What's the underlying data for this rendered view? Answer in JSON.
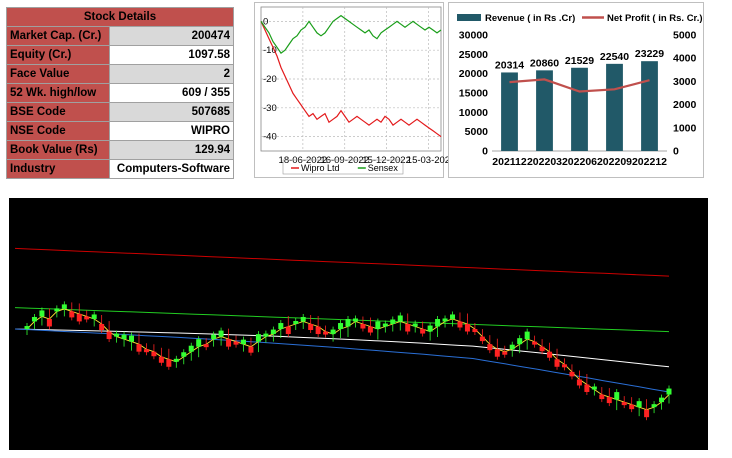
{
  "stock_details": {
    "title": "Stock Details",
    "rows": [
      {
        "label": "Market Cap. (Cr.)",
        "value": "200474"
      },
      {
        "label": "Equity (Cr.)",
        "value": "1097.58"
      },
      {
        "label": "Face Value",
        "value": "2"
      },
      {
        "label": "52 Wk. high/low",
        "value": "609 / 355"
      },
      {
        "label": "BSE Code",
        "value": "507685"
      },
      {
        "label": "NSE Code",
        "value": "WIPRO"
      },
      {
        "label": "Book Value (Rs)",
        "value": "129.94"
      },
      {
        "label": "Industry",
        "value": "Computers-Software"
      }
    ]
  },
  "chart_data": [
    {
      "type": "line",
      "title": "",
      "xlabel": "",
      "ylabel": "",
      "x_ticks": [
        "18-06-2022",
        "16-09-2022",
        "15-12-2022",
        "15-03-202"
      ],
      "ylim": [
        -45,
        5
      ],
      "y_ticks": [
        0,
        -10,
        -20,
        -30,
        -40
      ],
      "grid": true,
      "legend_position": "bottom",
      "series": [
        {
          "name": "Wipro Ltd",
          "color": "#e31a1c",
          "values": [
            0,
            -3,
            -6,
            -9,
            -12,
            -16,
            -19,
            -22,
            -25,
            -27,
            -29,
            -31,
            -33,
            -32,
            -34,
            -33,
            -32,
            -35,
            -34,
            -33,
            -31,
            -33,
            -35,
            -34,
            -33,
            -34,
            -35,
            -36,
            -35,
            -34,
            -35,
            -33,
            -34,
            -36,
            -35,
            -34,
            -35,
            -36,
            -35,
            -34,
            -35,
            -36,
            -37,
            -38,
            -39,
            -40
          ]
        },
        {
          "name": "Sensex",
          "color": "#1a9e1a",
          "values": [
            0,
            -2,
            -4,
            -7,
            -9,
            -11,
            -10,
            -8,
            -6,
            -5,
            -3,
            -2,
            0,
            -2,
            -4,
            -5,
            -4,
            -2,
            0,
            1,
            2,
            1,
            0,
            -1,
            -2,
            -3,
            -4,
            -3,
            -5,
            -6,
            -4,
            -3,
            -2,
            -1,
            0,
            -1,
            -2,
            -1,
            0,
            -1,
            -2,
            -3,
            -2,
            -3,
            -4,
            -3
          ]
        }
      ]
    },
    {
      "type": "bar",
      "title": "",
      "categories": [
        "202112",
        "202203",
        "202206",
        "202209",
        "202212"
      ],
      "ylim": [
        0,
        30000
      ],
      "y_ticks": [
        0,
        5000,
        10000,
        15000,
        20000,
        25000,
        30000
      ],
      "y2lim": [
        0,
        5000
      ],
      "y2_ticks": [
        0,
        1000,
        2000,
        3000,
        4000,
        5000
      ],
      "legend_position": "top",
      "series": [
        {
          "name": "Revenue ( in Rs .Cr)",
          "color": "#215968",
          "axis": "left",
          "values": [
            20314,
            20860,
            21529,
            22540,
            23229
          ]
        },
        {
          "name": "Net Profit ( in Rs. Cr.)",
          "color": "#c0504d",
          "axis": "right",
          "kind": "line",
          "values": [
            2970,
            3087,
            2563,
            2659,
            3052
          ]
        }
      ]
    },
    {
      "type": "line",
      "title": "",
      "background": "#000000",
      "ylim": [
        0,
        100
      ],
      "moving_averages": [
        {
          "color": "#cc0000",
          "values": [
            80,
            69
          ]
        },
        {
          "color": "#22cc22",
          "values": [
            56.5,
            47
          ]
        },
        {
          "color": "#ffffff",
          "values": [
            48,
            36
          ]
        },
        {
          "color": "#2a6fd6",
          "values": [
            48,
            29
          ]
        }
      ],
      "candles": [
        {
          "close": 48,
          "up": true
        },
        {
          "close": 51,
          "up": true
        },
        {
          "close": 53,
          "up": true
        },
        {
          "close": 52,
          "up": false
        },
        {
          "close": 55,
          "up": true
        },
        {
          "close": 56,
          "up": true
        },
        {
          "close": 55,
          "up": false
        },
        {
          "close": 54,
          "up": false
        },
        {
          "close": 53,
          "up": false
        },
        {
          "close": 52,
          "up": true
        },
        {
          "close": 50,
          "up": false
        },
        {
          "close": 47,
          "up": false
        },
        {
          "close": 45,
          "up": true
        },
        {
          "close": 44,
          "up": true
        },
        {
          "close": 43,
          "up": true
        },
        {
          "close": 42,
          "up": false
        },
        {
          "close": 40,
          "up": false
        },
        {
          "close": 39,
          "up": false
        },
        {
          "close": 37,
          "up": false
        },
        {
          "close": 36,
          "up": false
        },
        {
          "close": 35,
          "up": true
        },
        {
          "close": 37,
          "up": true
        },
        {
          "close": 39,
          "up": true
        },
        {
          "close": 41,
          "up": true
        },
        {
          "close": 42,
          "up": false
        },
        {
          "close": 44,
          "up": true
        },
        {
          "close": 45,
          "up": true
        },
        {
          "close": 44,
          "up": false
        },
        {
          "close": 43,
          "up": false
        },
        {
          "close": 42,
          "up": true
        },
        {
          "close": 41,
          "up": false
        },
        {
          "close": 43,
          "up": true
        },
        {
          "close": 45,
          "up": true
        },
        {
          "close": 46,
          "up": true
        },
        {
          "close": 48,
          "up": true
        },
        {
          "close": 49,
          "up": false
        },
        {
          "close": 50,
          "up": true
        },
        {
          "close": 51,
          "up": true
        },
        {
          "close": 50,
          "up": false
        },
        {
          "close": 49,
          "up": false
        },
        {
          "close": 47,
          "up": false
        },
        {
          "close": 46,
          "up": true
        },
        {
          "close": 48,
          "up": true
        },
        {
          "close": 49,
          "up": true
        },
        {
          "close": 51,
          "up": true
        },
        {
          "close": 50,
          "up": false
        },
        {
          "close": 49,
          "up": false
        },
        {
          "close": 48,
          "up": true
        },
        {
          "close": 49,
          "up": true
        },
        {
          "close": 50,
          "up": true
        },
        {
          "close": 51,
          "up": true
        },
        {
          "close": 50,
          "up": false
        },
        {
          "close": 49,
          "up": true
        },
        {
          "close": 48,
          "up": false
        },
        {
          "close": 47,
          "up": true
        },
        {
          "close": 49,
          "up": true
        },
        {
          "close": 51,
          "up": true
        },
        {
          "close": 52,
          "up": true
        },
        {
          "close": 51,
          "up": false
        },
        {
          "close": 50,
          "up": false
        },
        {
          "close": 48,
          "up": false
        },
        {
          "close": 45,
          "up": false
        },
        {
          "close": 42,
          "up": false
        },
        {
          "close": 40,
          "up": false
        },
        {
          "close": 39,
          "up": false
        },
        {
          "close": 40,
          "up": true
        },
        {
          "close": 42,
          "up": true
        },
        {
          "close": 44,
          "up": true
        },
        {
          "close": 43,
          "up": false
        },
        {
          "close": 41,
          "up": false
        },
        {
          "close": 39,
          "up": false
        },
        {
          "close": 36,
          "up": false
        },
        {
          "close": 34,
          "up": false
        },
        {
          "close": 31,
          "up": false
        },
        {
          "close": 28,
          "up": false
        },
        {
          "close": 26,
          "up": false
        },
        {
          "close": 24,
          "up": true
        },
        {
          "close": 22,
          "up": false
        },
        {
          "close": 21,
          "up": false
        },
        {
          "close": 20,
          "up": true
        },
        {
          "close": 19,
          "up": false
        },
        {
          "close": 18,
          "up": false
        },
        {
          "close": 17,
          "up": true
        },
        {
          "close": 16,
          "up": false
        },
        {
          "close": 17,
          "up": true
        },
        {
          "close": 19,
          "up": true
        },
        {
          "close": 22,
          "up": true
        }
      ]
    }
  ]
}
